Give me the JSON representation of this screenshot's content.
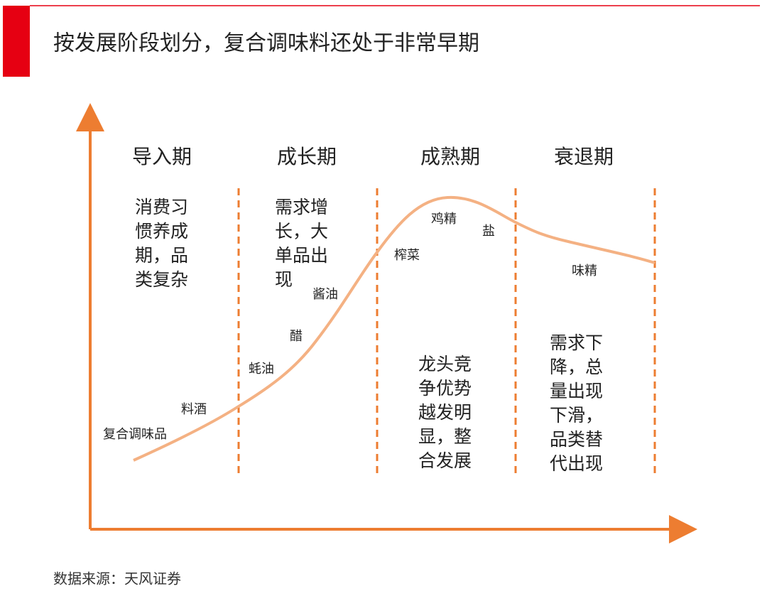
{
  "title": "按发展阶段划分，复合调味料还处于非常早期",
  "stages": [
    {
      "name": "导入期",
      "lines": [
        "消费习",
        "惯养成",
        "期，品",
        "类复杂"
      ]
    },
    {
      "name": "成长期",
      "lines": [
        "需求增",
        "长，大",
        "单品出",
        "现"
      ]
    },
    {
      "name": "成熟期",
      "lines": [
        "龙头竞",
        "争优势",
        "越发明",
        "显，整",
        "合发展"
      ]
    },
    {
      "name": "衰退期",
      "lines": [
        "需求下",
        "降，总",
        "量出现",
        "下滑，",
        "品类替",
        "代出现"
      ]
    }
  ],
  "products": [
    "复合调味品",
    "料酒",
    "蚝油",
    "醋",
    "酱油",
    "榨菜",
    "鸡精",
    "盐",
    "味精"
  ],
  "source": "数据来源：天风证券"
}
